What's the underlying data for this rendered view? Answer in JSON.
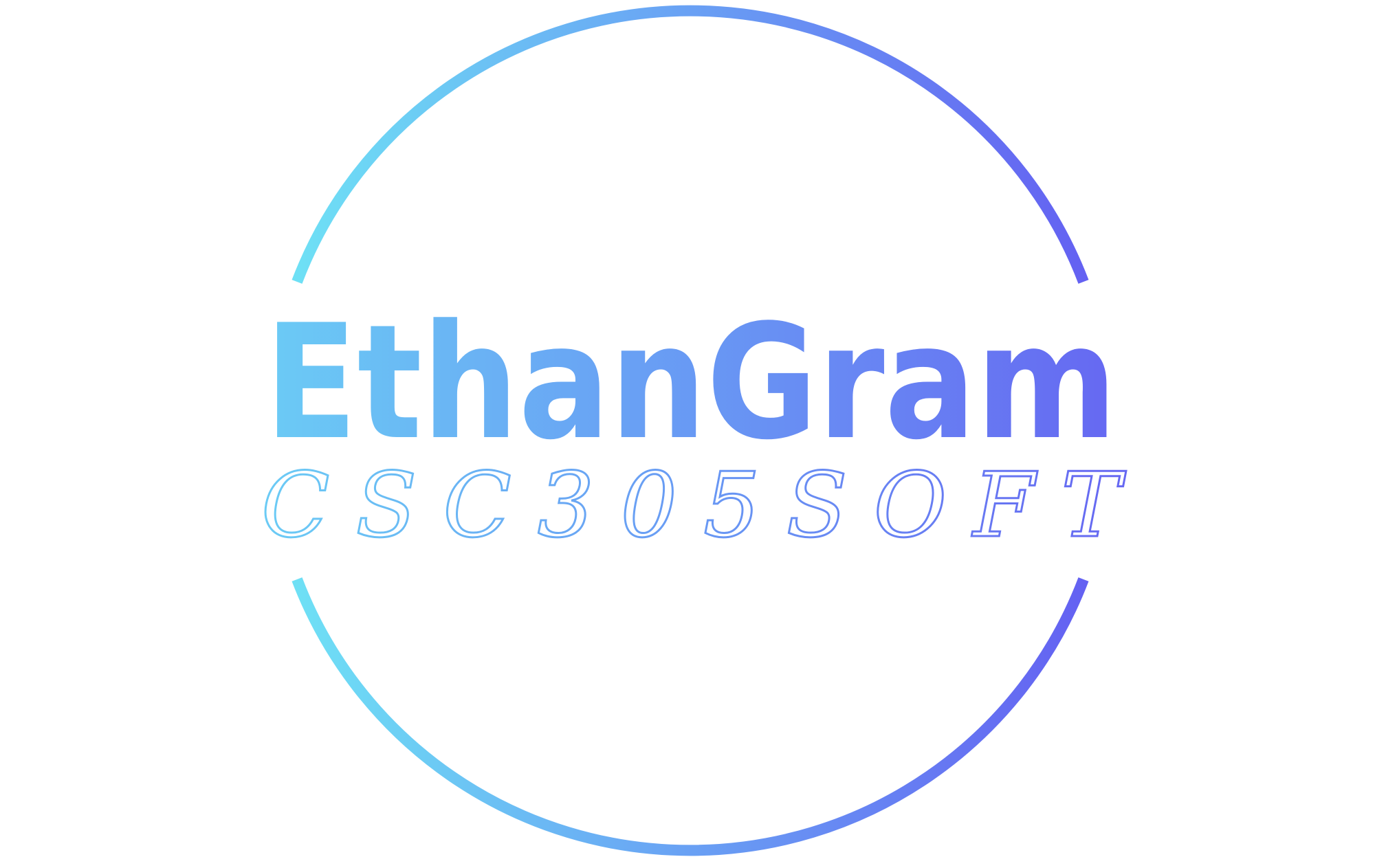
{
  "logo": {
    "wordmark": "EthanGram",
    "tagline": "CSC305SOFT",
    "gradient_start_color": "#6ee0f5",
    "gradient_end_color": "#6461f2",
    "wordmark_start_color": "#6bcbf5",
    "wordmark_end_color": "#6668f2",
    "background_color": "#ffffff"
  }
}
